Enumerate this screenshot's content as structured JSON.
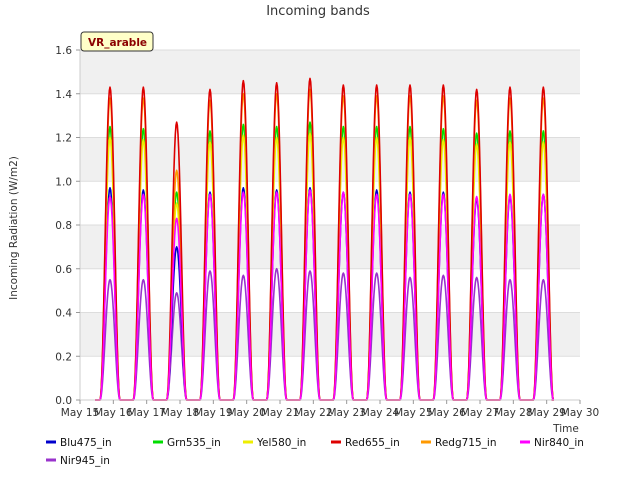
{
  "chart_data": {
    "type": "line",
    "title": "Incoming bands",
    "xlabel": "Time",
    "ylabel": "Incoming Radiation (W/m2)",
    "badge": "VR_arable",
    "ylim": [
      0,
      1.6
    ],
    "yticks": [
      "0.0",
      "0.2",
      "0.4",
      "0.6",
      "0.8",
      "1.0",
      "1.2",
      "1.4",
      "1.6"
    ],
    "xlim": [
      15,
      30
    ],
    "xticks": [
      "May 15",
      "May 16",
      "May 17",
      "May 18",
      "May 19",
      "May 20",
      "May 21",
      "May 22",
      "May 23",
      "May 24",
      "May 25",
      "May 26",
      "May 27",
      "May 28",
      "May 29",
      "May 30"
    ],
    "grid": true,
    "legend_position": "bottom",
    "day_centers": [
      15.9,
      16.9,
      17.9,
      18.9,
      19.9,
      20.9,
      21.9,
      22.9,
      23.9,
      24.9,
      25.9,
      26.9,
      27.9,
      28.9
    ],
    "series": [
      {
        "name": "Blu475_in",
        "color": "#0000cc",
        "peaks": [
          0.97,
          0.96,
          0.7,
          0.95,
          0.97,
          0.96,
          0.97,
          0.95,
          0.96,
          0.95,
          0.95,
          0.92,
          0.93,
          0.94
        ]
      },
      {
        "name": "Grn535_in",
        "color": "#00dd00",
        "peaks": [
          1.25,
          1.24,
          0.95,
          1.23,
          1.26,
          1.25,
          1.27,
          1.25,
          1.25,
          1.25,
          1.24,
          1.22,
          1.23,
          1.23
        ]
      },
      {
        "name": "Yel580_in",
        "color": "#eeee00",
        "peaks": [
          1.2,
          1.19,
          0.9,
          1.18,
          1.21,
          1.2,
          1.22,
          1.2,
          1.2,
          1.2,
          1.19,
          1.17,
          1.18,
          1.18
        ]
      },
      {
        "name": "Red655_in",
        "color": "#dd0000",
        "peaks": [
          1.43,
          1.43,
          1.27,
          1.42,
          1.46,
          1.45,
          1.47,
          1.44,
          1.44,
          1.44,
          1.44,
          1.42,
          1.43,
          1.43
        ]
      },
      {
        "name": "Redg715_in",
        "color": "#ff9900",
        "peaks": [
          1.38,
          1.38,
          1.05,
          1.37,
          1.4,
          1.4,
          1.42,
          1.39,
          1.39,
          1.39,
          1.39,
          1.37,
          1.38,
          1.38
        ]
      },
      {
        "name": "Nir840_in",
        "color": "#ff00ff",
        "peaks": [
          0.93,
          0.94,
          0.83,
          0.94,
          0.95,
          0.95,
          0.96,
          0.95,
          0.94,
          0.94,
          0.94,
          0.93,
          0.94,
          0.94
        ]
      },
      {
        "name": "Nir945_in",
        "color": "#9933cc",
        "peaks": [
          0.55,
          0.55,
          0.49,
          0.59,
          0.57,
          0.6,
          0.59,
          0.58,
          0.58,
          0.56,
          0.57,
          0.56,
          0.55,
          0.55
        ]
      }
    ]
  }
}
